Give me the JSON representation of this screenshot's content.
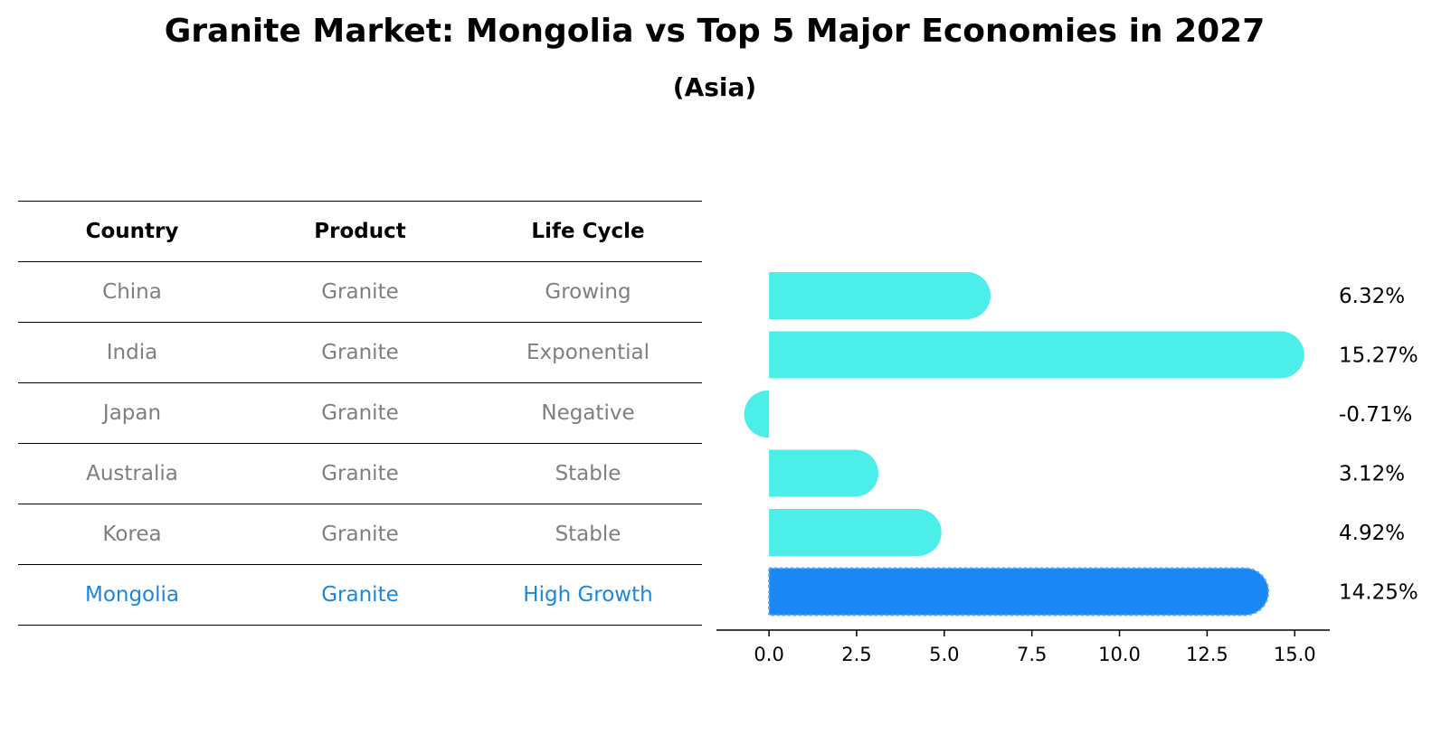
{
  "title": "Granite Market: Mongolia vs Top 5 Major Economies in 2027",
  "subtitle": "(Asia)",
  "table": {
    "headers": [
      "Country",
      "Product",
      "Life Cycle"
    ],
    "rows": [
      [
        "China",
        "Granite",
        "Growing"
      ],
      [
        "India",
        "Granite",
        "Exponential"
      ],
      [
        "Japan",
        "Granite",
        "Negative"
      ],
      [
        "Australia",
        "Granite",
        "Stable"
      ],
      [
        "Korea",
        "Granite",
        "Stable"
      ],
      [
        "Mongolia",
        "Granite",
        "High Growth"
      ]
    ],
    "highlight_row": 5
  },
  "colors": {
    "bar": "#4ceeea",
    "highlight_bar": "#1a87f5",
    "highlight_text": "#1a87de",
    "muted_text": "#7f7f7f"
  },
  "chart_data": {
    "type": "bar",
    "orientation": "horizontal",
    "categories": [
      "China",
      "India",
      "Japan",
      "Australia",
      "Korea",
      "Mongolia"
    ],
    "values": [
      6.32,
      15.27,
      -0.71,
      3.12,
      4.92,
      14.25
    ],
    "value_labels": [
      "6.32%",
      "15.27%",
      "-0.71%",
      "3.12%",
      "4.92%",
      "14.25%"
    ],
    "xlim": [
      -1.5,
      16.0
    ],
    "xticks": [
      0.0,
      2.5,
      5.0,
      7.5,
      10.0,
      12.5,
      15.0
    ],
    "xtick_labels": [
      "0.0",
      "2.5",
      "5.0",
      "7.5",
      "10.0",
      "12.5",
      "15.0"
    ],
    "highlight_index": 5,
    "grid": false
  }
}
